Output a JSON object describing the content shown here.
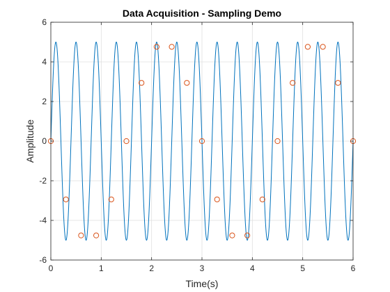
{
  "chart_data": {
    "type": "line",
    "title": "Data Acquisition - Sampling Demo",
    "xlabel": "Time(s)",
    "ylabel": "Amplitude",
    "xlim": [
      0,
      6
    ],
    "ylim": [
      -6,
      6
    ],
    "xticks": [
      0,
      1,
      2,
      3,
      4,
      5,
      6
    ],
    "yticks": [
      -6,
      -4,
      -2,
      0,
      2,
      4,
      6
    ],
    "grid": true,
    "series": [
      {
        "kind": "continuous",
        "color": "#0072BD",
        "amplitude": 5,
        "frequency_hz": 2.5,
        "x_start": 0,
        "x_end": 6
      },
      {
        "kind": "samples",
        "color": "#D95319",
        "marker": "circle",
        "x": [
          0,
          0.3,
          0.6,
          0.9,
          1.2,
          1.5,
          1.8,
          2.1,
          2.4,
          2.7,
          3.0,
          3.3,
          3.6,
          3.9,
          4.2,
          4.5,
          4.8,
          5.1,
          5.4,
          5.7,
          6.0
        ],
        "y": [
          0,
          -2.94,
          -4.76,
          -4.76,
          -2.94,
          0,
          2.94,
          4.76,
          4.76,
          2.94,
          0,
          -2.94,
          -4.76,
          -4.76,
          -2.94,
          0,
          2.94,
          4.76,
          4.76,
          2.94,
          0
        ]
      }
    ]
  }
}
